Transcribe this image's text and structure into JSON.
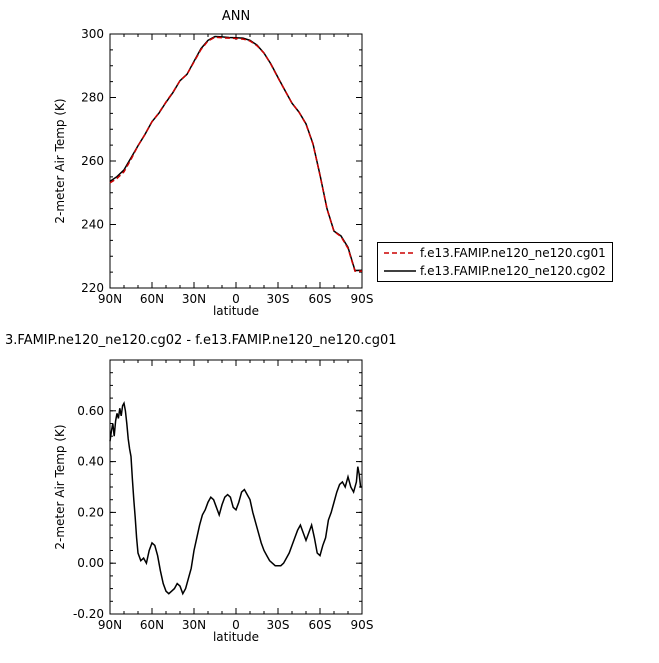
{
  "chart_data": [
    {
      "type": "line",
      "title": "ANN",
      "xlabel": "latitude",
      "ylabel": "2-meter Air Temp (K)",
      "xlim": [
        90,
        -90
      ],
      "ylim": [
        220,
        300
      ],
      "x_ticks": [
        90,
        60,
        30,
        0,
        -30,
        -60,
        -90
      ],
      "x_tick_labels": [
        "90N",
        "60N",
        "30N",
        "0",
        "30S",
        "60S",
        "90S"
      ],
      "y_ticks": [
        220,
        240,
        260,
        280,
        300
      ],
      "y_tick_labels": [
        "220",
        "240",
        "260",
        "280",
        "300"
      ],
      "legend": {
        "placement": "right",
        "entries": [
          {
            "label": "f.e13.FAMIP.ne120_ne120.cg01",
            "color": "#cc0000",
            "dash": "dashed"
          },
          {
            "label": "f.e13.FAMIP.ne120_ne120.cg02",
            "color": "#000000",
            "dash": "solid"
          }
        ]
      },
      "series": [
        {
          "name": "f.e13.FAMIP.ne120_ne120.cg01",
          "color": "#cc0000",
          "dash": "dashed",
          "x": [
            90,
            85,
            80,
            75,
            70,
            65,
            60,
            55,
            50,
            45,
            40,
            35,
            30,
            25,
            20,
            15,
            10,
            5,
            0,
            -5,
            -10,
            -15,
            -20,
            -25,
            -30,
            -35,
            -40,
            -45,
            -50,
            -55,
            -60,
            -65,
            -70,
            -75,
            -80,
            -85,
            -90
          ],
          "y": [
            253.1,
            254.5,
            256.6,
            260.5,
            264.8,
            268.4,
            272.4,
            275.2,
            278.6,
            281.7,
            285.3,
            287.3,
            291.2,
            295.1,
            297.8,
            299.0,
            298.8,
            298.7,
            298.6,
            298.4,
            297.8,
            296.3,
            294.0,
            290.4,
            286.2,
            282.2,
            278.2,
            275.4,
            271.6,
            265.3,
            255.5,
            244.9,
            237.8,
            236.2,
            232.5,
            225.3,
            225.3
          ]
        },
        {
          "name": "f.e13.FAMIP.ne120_ne120.cg02",
          "color": "#000000",
          "dash": "solid",
          "x": [
            90,
            85,
            80,
            75,
            70,
            65,
            60,
            55,
            50,
            45,
            40,
            35,
            30,
            25,
            20,
            15,
            10,
            5,
            0,
            -5,
            -10,
            -15,
            -20,
            -25,
            -30,
            -35,
            -40,
            -45,
            -50,
            -55,
            -60,
            -65,
            -70,
            -75,
            -80,
            -85,
            -90
          ],
          "y": [
            253.6,
            255.1,
            257.2,
            261.0,
            264.8,
            268.4,
            272.4,
            275.1,
            278.5,
            281.6,
            285.3,
            287.3,
            291.4,
            295.4,
            298.0,
            299.2,
            299.1,
            298.9,
            298.8,
            298.7,
            298.0,
            296.5,
            294.0,
            290.5,
            286.3,
            282.2,
            278.2,
            275.4,
            271.7,
            265.4,
            255.6,
            245.0,
            237.9,
            236.4,
            232.8,
            225.5,
            225.6
          ]
        }
      ]
    },
    {
      "type": "line",
      "title": "3.FAMIP.ne120_ne120.cg02 - f.e13.FAMIP.ne120_ne120.cg01",
      "xlabel": "latitude",
      "ylabel": "2-meter Air Temp (K)",
      "xlim": [
        90,
        -90
      ],
      "ylim": [
        -0.2,
        0.8
      ],
      "x_ticks": [
        90,
        60,
        30,
        0,
        -30,
        -60,
        -90
      ],
      "x_tick_labels": [
        "90N",
        "60N",
        "30N",
        "0",
        "30S",
        "60S",
        "90S"
      ],
      "y_ticks": [
        -0.2,
        0.0,
        0.2,
        0.4,
        0.6
      ],
      "y_tick_labels": [
        "-0.20",
        "0.00",
        "0.20",
        "0.40",
        "0.60"
      ],
      "series": [
        {
          "color": "#000000",
          "dash": "solid",
          "x": [
            90,
            89,
            88,
            87,
            86,
            85,
            84,
            83,
            82,
            81,
            80,
            79,
            78,
            77,
            76,
            75,
            74,
            73,
            72,
            71,
            70,
            68,
            66,
            64,
            62,
            60,
            58,
            56,
            54,
            52,
            50,
            48,
            46,
            44,
            42,
            40,
            38,
            36,
            34,
            32,
            30,
            28,
            26,
            24,
            22,
            20,
            18,
            16,
            14,
            12,
            10,
            8,
            6,
            4,
            2,
            0,
            -2,
            -4,
            -6,
            -8,
            -10,
            -12,
            -14,
            -16,
            -18,
            -20,
            -22,
            -24,
            -26,
            -28,
            -30,
            -32,
            -34,
            -36,
            -38,
            -40,
            -42,
            -44,
            -46,
            -48,
            -50,
            -52,
            -54,
            -56,
            -58,
            -60,
            -62,
            -64,
            -66,
            -68,
            -70,
            -72,
            -74,
            -76,
            -78,
            -80,
            -82,
            -84,
            -86,
            -87,
            -88,
            -89,
            -90
          ],
          "y": [
            0.48,
            0.52,
            0.55,
            0.5,
            0.56,
            0.59,
            0.57,
            0.61,
            0.58,
            0.62,
            0.63,
            0.6,
            0.55,
            0.49,
            0.45,
            0.42,
            0.33,
            0.25,
            0.18,
            0.1,
            0.04,
            0.01,
            0.02,
            0.0,
            0.05,
            0.08,
            0.07,
            0.03,
            -0.03,
            -0.08,
            -0.11,
            -0.12,
            -0.11,
            -0.1,
            -0.08,
            -0.09,
            -0.12,
            -0.1,
            -0.06,
            -0.02,
            0.05,
            0.1,
            0.15,
            0.19,
            0.21,
            0.24,
            0.26,
            0.25,
            0.22,
            0.19,
            0.23,
            0.26,
            0.27,
            0.26,
            0.22,
            0.21,
            0.24,
            0.28,
            0.29,
            0.27,
            0.25,
            0.2,
            0.16,
            0.12,
            0.08,
            0.05,
            0.03,
            0.01,
            0.0,
            -0.01,
            -0.01,
            -0.01,
            0.0,
            0.02,
            0.04,
            0.07,
            0.1,
            0.13,
            0.15,
            0.12,
            0.09,
            0.12,
            0.15,
            0.1,
            0.04,
            0.03,
            0.07,
            0.1,
            0.17,
            0.2,
            0.24,
            0.28,
            0.31,
            0.32,
            0.3,
            0.34,
            0.3,
            0.28,
            0.32,
            0.38,
            0.35,
            0.3,
            0.3
          ]
        }
      ]
    }
  ]
}
